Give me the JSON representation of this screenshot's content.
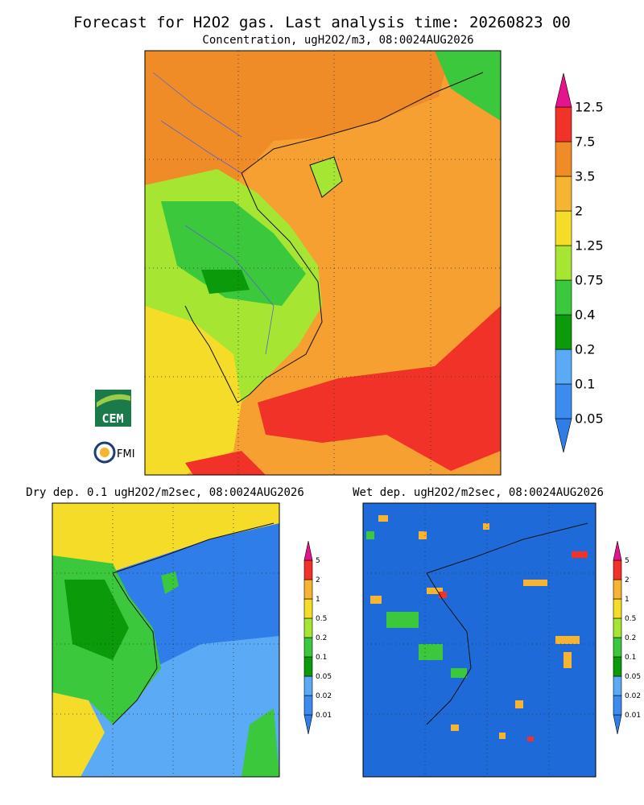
{
  "header": {
    "title": "Forecast for H2O2 gas. Last analysis time: 20260823 00"
  },
  "main_map": {
    "subtitle": "Concentration, ugH2O2/m3, 08:0024AUG2026",
    "colorbar": {
      "labels": [
        "0.05",
        "0.1",
        "0.2",
        "0.4",
        "0.75",
        "1.25",
        "2",
        "3.5",
        "7.5",
        "12.5"
      ],
      "colors": [
        "#2f7de8",
        "#3c8cf0",
        "#5aaaf5",
        "#0a9a0a",
        "#3cc83c",
        "#a6e632",
        "#f5dc28",
        "#f5b432",
        "#f08c28",
        "#f03228",
        "#e6148c"
      ]
    }
  },
  "dry_map": {
    "title": "Dry dep. 0.1 ugH2O2/m2sec, 08:0024AUG2026",
    "colorbar": {
      "labels": [
        "0.01",
        "0.02",
        "0.05",
        "0.1",
        "0.2",
        "0.5",
        "1",
        "2",
        "5"
      ],
      "colors": [
        "#2f7de8",
        "#3c8cf0",
        "#5aaaf5",
        "#0a9a0a",
        "#3cc83c",
        "#a6e632",
        "#f5dc28",
        "#f5b432",
        "#f03228",
        "#e6148c"
      ]
    }
  },
  "wet_map": {
    "title": "Wet dep. ugH2O2/m2sec, 08:0024AUG2026",
    "colorbar": {
      "labels": [
        "0.01",
        "0.02",
        "0.05",
        "0.1",
        "0.2",
        "0.5",
        "1",
        "2",
        "5"
      ],
      "colors": [
        "#2f7de8",
        "#3c8cf0",
        "#5aaaf5",
        "#0a9a0a",
        "#3cc83c",
        "#a6e632",
        "#f5dc28",
        "#f5b432",
        "#f03228",
        "#e6148c"
      ]
    }
  },
  "logos": {
    "cem": "CEM",
    "fmi": "FMI"
  }
}
